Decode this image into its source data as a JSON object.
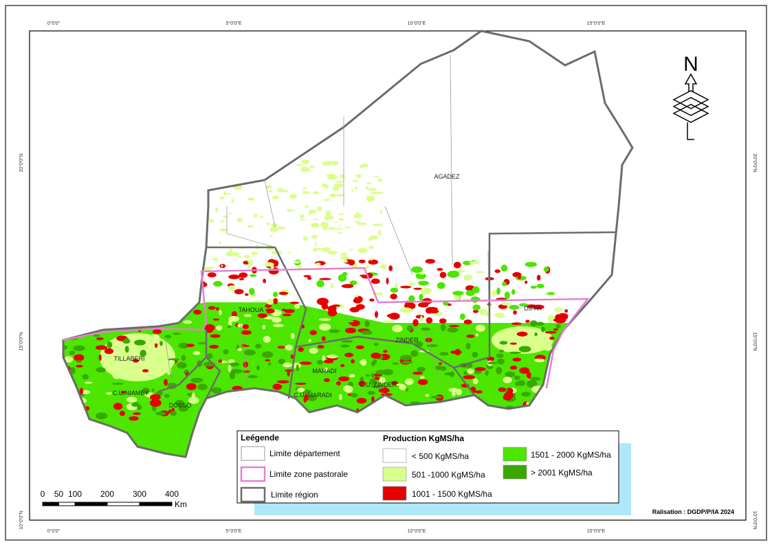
{
  "frame": {
    "top_labels": [
      "0°0'0\"",
      "5°0'0\"E",
      "10°0'0\"E",
      "15°0'0\"E"
    ],
    "bottom_labels": [
      "0°0'0\"",
      "5°0'0\"E",
      "10°0'0\"E",
      "15°0'0\"E"
    ],
    "left_labels": [
      "20°0'0\"N",
      "15°0'0\"N",
      "10°0'0\"N"
    ],
    "right_labels": [
      "20°0'0\"N",
      "15°0'0\"N",
      "10°0'0\"N"
    ]
  },
  "regions": [
    "AGADEZ",
    "TAHOUA",
    "DIFFA",
    "ZINDER",
    "TILLABERI",
    "C.U.NIAMEY",
    "DOSSO",
    "MARADI",
    "C.U. MARADI",
    "C.U. ZINDER"
  ],
  "north_arrow": "N",
  "legend": {
    "title": "Leégende",
    "boundaries": [
      {
        "label": "Limite département",
        "color": "#9a9a9a"
      },
      {
        "label": "Limite zone pastorale",
        "color": "#e87fd2"
      },
      {
        "label": "Limite région",
        "color": "#6b6b6b"
      }
    ],
    "production_title": "Production KgMS/ha",
    "classes": [
      {
        "label": "< 500 KgMS/ha",
        "color": "#ffffff"
      },
      {
        "label": "501 -1000 KgMS/ha",
        "color": "#d9ff8c"
      },
      {
        "label": "1001 - 1500 KgMS/ha",
        "color": "#e60000"
      },
      {
        "label": "1501 - 2000 KgMS/ha",
        "color": "#4ce600"
      },
      {
        "label": "> 2001 KgMS/ha",
        "color": "#38a800"
      }
    ]
  },
  "scale_bar": {
    "ticks": [
      0,
      50,
      100,
      200,
      300,
      400
    ],
    "unit": "Km"
  },
  "credit": "Ralisation : DGDP/P/IA 2024"
}
